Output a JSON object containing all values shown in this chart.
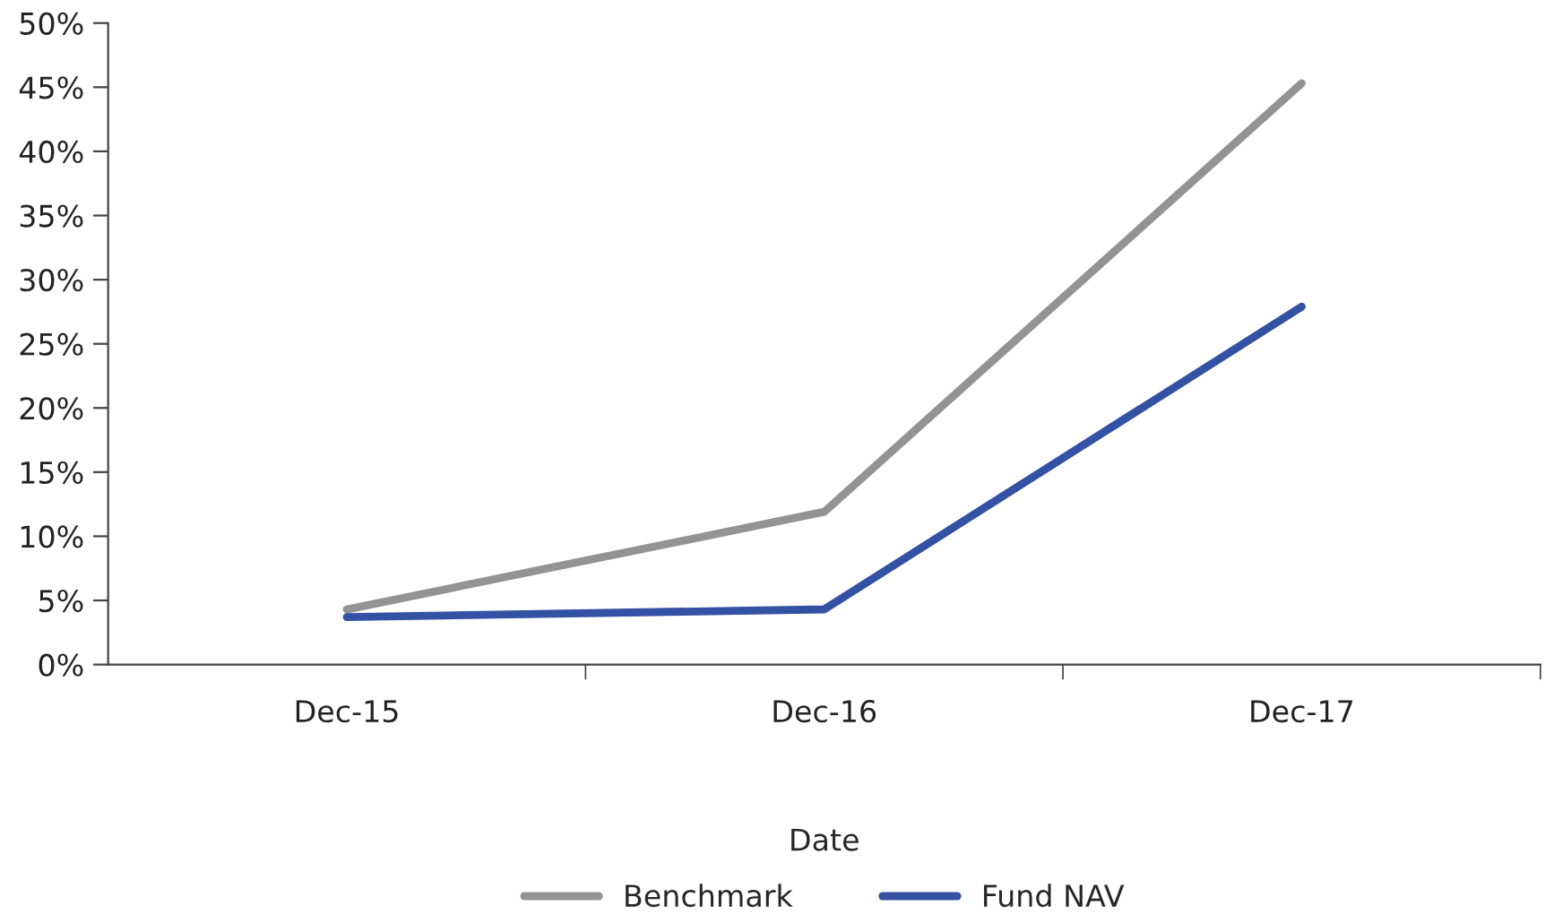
{
  "chart_data": {
    "type": "line",
    "xlabel": "Date",
    "categories": [
      "Dec-15",
      "Dec-16",
      "Dec-17"
    ],
    "series": [
      {
        "name": "Benchmark",
        "color": "#939393",
        "values": [
          4.3,
          11.9,
          45.3
        ]
      },
      {
        "name": "Fund NAV",
        "color": "#3452a4",
        "values": [
          3.7,
          4.3,
          27.9
        ]
      }
    ],
    "ylim": [
      0,
      50
    ],
    "yticks": [
      {
        "value": 0,
        "label": "0%"
      },
      {
        "value": 5,
        "label": "5%"
      },
      {
        "value": 10,
        "label": "10%"
      },
      {
        "value": 15,
        "label": "15%"
      },
      {
        "value": 20,
        "label": "20%"
      },
      {
        "value": 25,
        "label": "25%"
      },
      {
        "value": 30,
        "label": "30%"
      },
      {
        "value": 35,
        "label": "35%"
      },
      {
        "value": 40,
        "label": "40%"
      },
      {
        "value": 45,
        "label": "45%"
      },
      {
        "value": 50,
        "label": "50%"
      }
    ],
    "grid": false,
    "legend": "bottom",
    "marker": "none",
    "line_style": "solid"
  }
}
